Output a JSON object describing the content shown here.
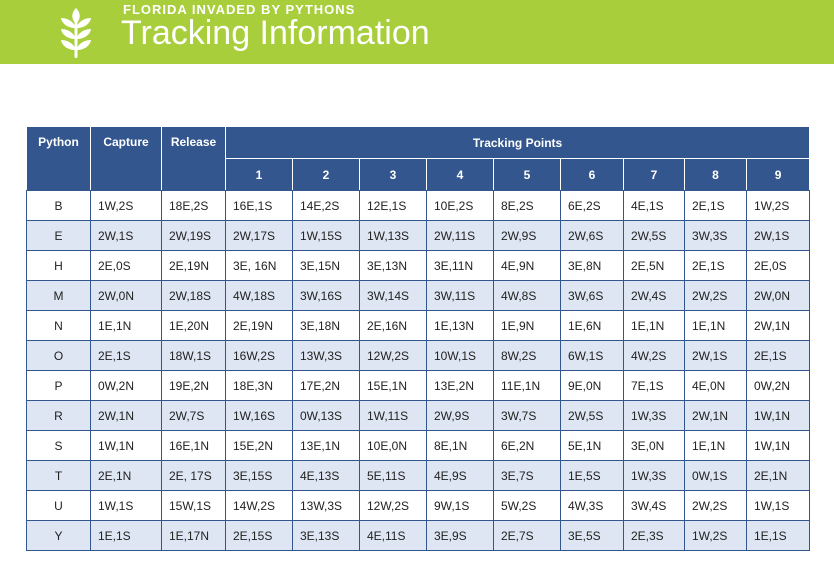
{
  "header": {
    "subtitle": "FLORIDA INVADED BY PYTHONS",
    "title": "Tracking Information",
    "logo_icon": "wheat-icon",
    "banner_color": "#a8ce3b"
  },
  "table": {
    "header_color": "#33568e",
    "stripe_color": "#dde6f2",
    "columns": {
      "python": "Python",
      "capture": "Capture",
      "release": "Release",
      "tracking_points": "Tracking Points"
    },
    "point_numbers": [
      "1",
      "2",
      "3",
      "4",
      "5",
      "6",
      "7",
      "8",
      "9"
    ],
    "rows": [
      {
        "python": "B",
        "capture": "1W,2S",
        "release": "18E,2S",
        "points": [
          "16E,1S",
          "14E,2S",
          "12E,1S",
          "10E,2S",
          "8E,2S",
          "6E,2S",
          "4E,1S",
          "2E,1S",
          "1W,2S"
        ]
      },
      {
        "python": "E",
        "capture": "2W,1S",
        "release": "2W,19S",
        "points": [
          "2W,17S",
          "1W,15S",
          "1W,13S",
          "2W,11S",
          "2W,9S",
          "2W,6S",
          "2W,5S",
          "3W,3S",
          "2W,1S"
        ]
      },
      {
        "python": "H",
        "capture": "2E,0S",
        "release": "2E,19N",
        "points": [
          "3E, 16N",
          "3E,15N",
          "3E,13N",
          "3E,11N",
          "4E,9N",
          "3E,8N",
          "2E,5N",
          "2E,1S",
          "2E,0S"
        ]
      },
      {
        "python": "M",
        "capture": "2W,0N",
        "release": "2W,18S",
        "points": [
          "4W,18S",
          "3W,16S",
          "3W,14S",
          "3W,11S",
          "4W,8S",
          "3W,6S",
          "2W,4S",
          "2W,2S",
          "2W,0N"
        ]
      },
      {
        "python": "N",
        "capture": "1E,1N",
        "release": "1E,20N",
        "points": [
          "2E,19N",
          "3E,18N",
          "2E,16N",
          "1E,13N",
          "1E,9N",
          "1E,6N",
          "1E,1N",
          "1E,1N",
          "2W,1N"
        ]
      },
      {
        "python": "O",
        "capture": "2E,1S",
        "release": "18W,1S",
        "points": [
          "16W,2S",
          "13W,3S",
          "12W,2S",
          "10W,1S",
          "8W,2S",
          "6W,1S",
          "4W,2S",
          "2W,1S",
          "2E,1S"
        ]
      },
      {
        "python": "P",
        "capture": "0W,2N",
        "release": "19E,2N",
        "points": [
          "18E,3N",
          "17E,2N",
          "15E,1N",
          "13E,2N",
          "11E,1N",
          "9E,0N",
          "7E,1S",
          "4E,0N",
          "0W,2N"
        ]
      },
      {
        "python": "R",
        "capture": "2W,1N",
        "release": "2W,7S",
        "points": [
          "1W,16S",
          "0W,13S",
          "1W,11S",
          "2W,9S",
          "3W,7S",
          "2W,5S",
          "1W,3S",
          "2W,1N",
          "1W,1N"
        ]
      },
      {
        "python": "S",
        "capture": "1W,1N",
        "release": "16E,1N",
        "points": [
          "15E,2N",
          "13E,1N",
          "10E,0N",
          "8E,1N",
          "6E,2N",
          "5E,1N",
          "3E,0N",
          "1E,1N",
          "1W,1N"
        ]
      },
      {
        "python": "T",
        "capture": "2E,1N",
        "release": "2E, 17S",
        "points": [
          "3E,15S",
          "4E,13S",
          "5E,11S",
          "4E,9S",
          "3E,7S",
          "1E,5S",
          "1W,3S",
          "0W,1S",
          "2E,1N"
        ]
      },
      {
        "python": "U",
        "capture": "1W,1S",
        "release": "15W,1S",
        "points": [
          "14W,2S",
          "13W,3S",
          "12W,2S",
          "9W,1S",
          "5W,2S",
          "4W,3S",
          "3W,4S",
          "2W,2S",
          "1W,1S"
        ]
      },
      {
        "python": "Y",
        "capture": "1E,1S",
        "release": "1E,17N",
        "points": [
          "2E,15S",
          "3E,13S",
          "4E,11S",
          "3E,9S",
          "2E,7S",
          "3E,5S",
          "2E,3S",
          "1W,2S",
          "1E,1S"
        ]
      }
    ]
  }
}
